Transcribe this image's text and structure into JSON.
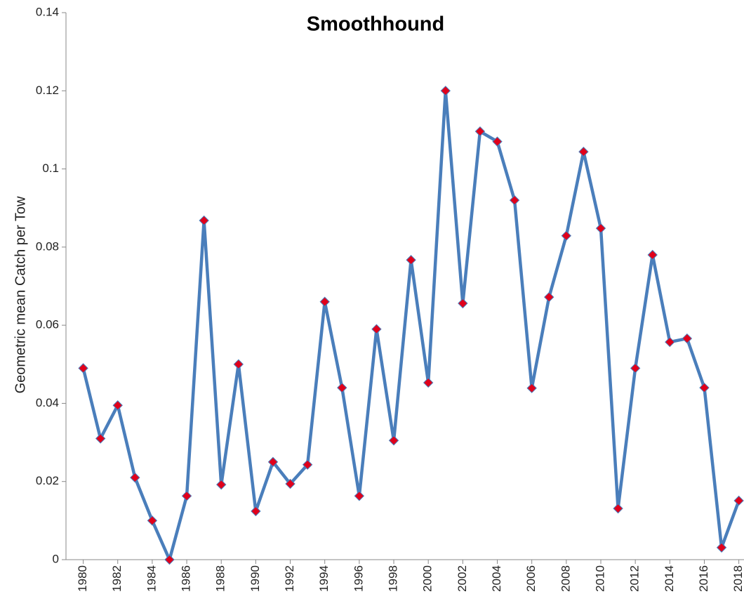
{
  "chart_data": {
    "type": "line",
    "title": "Smoothhound",
    "y_label": "Geometric mean Catch per Tow",
    "x": [
      1980,
      1981,
      1982,
      1983,
      1984,
      1985,
      1986,
      1987,
      1988,
      1989,
      1990,
      1991,
      1992,
      1993,
      1994,
      1995,
      1996,
      1997,
      1998,
      1999,
      2000,
      2001,
      2002,
      2003,
      2004,
      2005,
      2006,
      2007,
      2008,
      2009,
      2010,
      2011,
      2012,
      2013,
      2014,
      2015,
      2016,
      2017,
      2018
    ],
    "series": [
      {
        "name": "Smoothhound",
        "color": "#4a7ebb",
        "marker_color": "#e0001b",
        "values": [
          0.049,
          0.031,
          0.0395,
          0.021,
          0.01,
          0,
          0.0163,
          0.0868,
          0.0192,
          0.05,
          0.0124,
          0.025,
          0.0194,
          0.0243,
          0.066,
          0.044,
          0.0163,
          0.059,
          0.0305,
          0.0767,
          0.0453,
          0.12,
          0.0656,
          0.1096,
          0.107,
          0.092,
          0.0439,
          0.0672,
          0.0829,
          0.1044,
          0.0848,
          0.0131,
          0.049,
          0.078,
          0.0557,
          0.0566,
          0.044,
          0.0031,
          0.0151
        ]
      }
    ],
    "xlim": [
      1979,
      2018.3
    ],
    "xticks": [
      1980,
      1982,
      1984,
      1986,
      1988,
      1990,
      1992,
      1994,
      1996,
      1998,
      2000,
      2002,
      2004,
      2006,
      2008,
      2010,
      2012,
      2014,
      2016,
      2018
    ],
    "ylim": [
      0,
      0.14
    ],
    "yticks": [
      0,
      0.02,
      0.04,
      0.06,
      0.08,
      0.1,
      0.12,
      0.14
    ],
    "grid": false
  }
}
